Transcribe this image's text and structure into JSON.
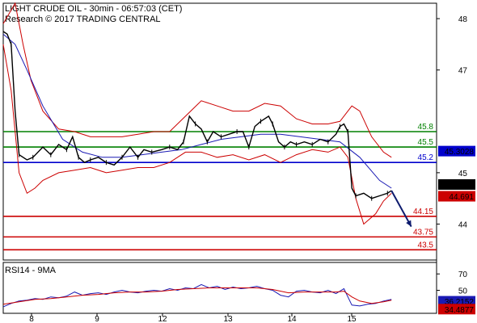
{
  "header": {
    "title": "LIGHT CRUDE OIL - 30min - 06:57:03 (CET)",
    "subtitle": "Research © 2017 TRADING CENTRAL"
  },
  "colors": {
    "price": "#000000",
    "ma_blue": "#1a1ab4",
    "bollinger": "#cc0000",
    "support": "#008000",
    "resistance_blue": "#0000cc",
    "target_red": "#cc0000",
    "arrow": "#0d1b6e",
    "rsi": "#1a1ab4",
    "rsi_ma": "#cc0000"
  },
  "chart_data": [
    {
      "type": "line",
      "name": "price-panel",
      "ylim": [
        43.3,
        48.3
      ],
      "y_ticks": [
        44,
        45,
        47,
        48
      ],
      "x_ticks": [
        "8",
        "9",
        "12",
        "13",
        "14",
        "15"
      ],
      "price_path": [
        [
          0,
          47.75
        ],
        [
          2,
          47.7
        ],
        [
          4,
          47.5
        ],
        [
          6,
          46.2
        ],
        [
          8,
          45.35
        ],
        [
          12,
          45.25
        ],
        [
          15,
          45.3
        ],
        [
          20,
          45.5
        ],
        [
          24,
          45.35
        ],
        [
          28,
          45.55
        ],
        [
          32,
          45.45
        ],
        [
          35,
          45.7
        ],
        [
          38,
          45.3
        ],
        [
          41,
          45.2
        ],
        [
          44,
          45.25
        ],
        [
          48,
          45.3
        ],
        [
          52,
          45.2
        ],
        [
          56,
          45.15
        ],
        [
          60,
          45.3
        ],
        [
          64,
          45.5
        ],
        [
          68,
          45.3
        ],
        [
          71,
          45.45
        ],
        [
          75,
          45.4
        ],
        [
          80,
          45.45
        ],
        [
          84,
          45.5
        ],
        [
          88,
          45.45
        ],
        [
          91,
          45.6
        ],
        [
          94,
          46.1
        ],
        [
          97,
          45.95
        ],
        [
          100,
          45.85
        ],
        [
          103,
          45.6
        ],
        [
          106,
          45.8
        ],
        [
          110,
          45.7
        ],
        [
          114,
          45.75
        ],
        [
          118,
          45.8
        ],
        [
          121,
          45.8
        ],
        [
          124,
          45.5
        ],
        [
          127,
          45.9
        ],
        [
          130,
          46.0
        ],
        [
          134,
          46.1
        ],
        [
          136,
          45.95
        ],
        [
          139,
          45.6
        ],
        [
          142,
          45.5
        ],
        [
          145,
          45.6
        ],
        [
          148,
          45.55
        ],
        [
          152,
          45.6
        ],
        [
          156,
          45.55
        ],
        [
          160,
          45.65
        ],
        [
          164,
          45.6
        ],
        [
          168,
          45.75
        ],
        [
          170,
          45.9
        ],
        [
          172,
          45.95
        ],
        [
          174,
          45.8
        ],
        [
          176,
          44.7
        ],
        [
          178,
          44.55
        ],
        [
          182,
          44.6
        ],
        [
          186,
          44.5
        ],
        [
          190,
          44.55
        ],
        [
          194,
          44.6
        ],
        [
          196,
          44.65
        ]
      ],
      "ma_path": [
        [
          0,
          47.7
        ],
        [
          6,
          47.5
        ],
        [
          12,
          47.0
        ],
        [
          20,
          46.3
        ],
        [
          30,
          45.65
        ],
        [
          40,
          45.4
        ],
        [
          50,
          45.3
        ],
        [
          60,
          45.3
        ],
        [
          70,
          45.35
        ],
        [
          80,
          45.4
        ],
        [
          90,
          45.45
        ],
        [
          100,
          45.55
        ],
        [
          110,
          45.65
        ],
        [
          120,
          45.7
        ],
        [
          130,
          45.75
        ],
        [
          140,
          45.75
        ],
        [
          150,
          45.7
        ],
        [
          160,
          45.65
        ],
        [
          170,
          45.6
        ],
        [
          180,
          45.3
        ],
        [
          190,
          44.85
        ],
        [
          196,
          44.7
        ]
      ],
      "bb_upper": [
        [
          0,
          47.9
        ],
        [
          6,
          48.3
        ],
        [
          10,
          47.5
        ],
        [
          14,
          46.8
        ],
        [
          20,
          46.2
        ],
        [
          28,
          45.85
        ],
        [
          36,
          45.8
        ],
        [
          44,
          45.7
        ],
        [
          52,
          45.7
        ],
        [
          60,
          45.7
        ],
        [
          68,
          45.75
        ],
        [
          76,
          45.8
        ],
        [
          84,
          45.8
        ],
        [
          92,
          46.1
        ],
        [
          100,
          46.4
        ],
        [
          108,
          46.3
        ],
        [
          116,
          46.2
        ],
        [
          124,
          46.2
        ],
        [
          132,
          46.35
        ],
        [
          140,
          46.3
        ],
        [
          148,
          46.05
        ],
        [
          156,
          45.95
        ],
        [
          164,
          45.95
        ],
        [
          170,
          46.0
        ],
        [
          176,
          46.3
        ],
        [
          180,
          46.2
        ],
        [
          186,
          45.7
        ],
        [
          192,
          45.4
        ],
        [
          196,
          45.3
        ]
      ],
      "bb_lower": [
        [
          0,
          47.5
        ],
        [
          4,
          46.6
        ],
        [
          8,
          45.0
        ],
        [
          12,
          44.6
        ],
        [
          16,
          44.7
        ],
        [
          20,
          44.85
        ],
        [
          28,
          45.0
        ],
        [
          36,
          45.05
        ],
        [
          44,
          45.1
        ],
        [
          52,
          45.0
        ],
        [
          60,
          45.05
        ],
        [
          68,
          45.1
        ],
        [
          76,
          45.1
        ],
        [
          84,
          45.2
        ],
        [
          92,
          45.4
        ],
        [
          100,
          45.4
        ],
        [
          108,
          45.3
        ],
        [
          116,
          45.35
        ],
        [
          124,
          45.25
        ],
        [
          132,
          45.35
        ],
        [
          140,
          45.2
        ],
        [
          148,
          45.35
        ],
        [
          156,
          45.45
        ],
        [
          164,
          45.4
        ],
        [
          170,
          45.5
        ],
        [
          174,
          45.3
        ],
        [
          178,
          44.5
        ],
        [
          182,
          44.0
        ],
        [
          188,
          44.2
        ],
        [
          192,
          44.45
        ],
        [
          196,
          44.6
        ]
      ],
      "forecast_arrow": {
        "from": [
          196,
          44.65
        ],
        "to": [
          206,
          43.95
        ]
      },
      "levels": [
        {
          "value": 45.8,
          "label": "45.8",
          "kind": "support"
        },
        {
          "value": 45.5,
          "label": "45.5",
          "kind": "support"
        },
        {
          "value": 45.2,
          "label": "45.2",
          "kind": "pivot"
        },
        {
          "value": 44.15,
          "label": "44.15",
          "kind": "target"
        },
        {
          "value": 43.75,
          "label": "43.75",
          "kind": "target"
        },
        {
          "value": 43.5,
          "label": "43.5",
          "kind": "target"
        }
      ],
      "tags": [
        {
          "value": 45.3028,
          "label": "45.3028",
          "color": "#0000cc"
        },
        {
          "value": 44.7,
          "label": "44.7",
          "color": "#000000"
        },
        {
          "value": 44.691,
          "label": "44.691",
          "color": "#cc0000"
        }
      ]
    },
    {
      "type": "line",
      "name": "rsi-panel",
      "label": "RSI14 - 9MA",
      "ylim": [
        22,
        84
      ],
      "y_ticks": [
        50,
        70
      ],
      "rsi_path": [
        [
          0,
          30
        ],
        [
          4,
          34
        ],
        [
          8,
          37
        ],
        [
          12,
          38
        ],
        [
          16,
          40
        ],
        [
          20,
          39
        ],
        [
          24,
          42
        ],
        [
          28,
          41
        ],
        [
          32,
          43
        ],
        [
          36,
          48
        ],
        [
          40,
          44
        ],
        [
          44,
          46
        ],
        [
          48,
          47
        ],
        [
          52,
          45
        ],
        [
          56,
          48
        ],
        [
          60,
          50
        ],
        [
          64,
          48
        ],
        [
          68,
          47
        ],
        [
          72,
          49
        ],
        [
          76,
          50
        ],
        [
          80,
          49
        ],
        [
          84,
          52
        ],
        [
          88,
          50
        ],
        [
          92,
          53
        ],
        [
          96,
          52
        ],
        [
          100,
          57
        ],
        [
          104,
          53
        ],
        [
          108,
          55
        ],
        [
          112,
          51
        ],
        [
          116,
          54
        ],
        [
          120,
          52
        ],
        [
          124,
          53
        ],
        [
          128,
          55
        ],
        [
          132,
          52
        ],
        [
          136,
          50
        ],
        [
          140,
          44
        ],
        [
          144,
          42
        ],
        [
          148,
          49
        ],
        [
          152,
          50
        ],
        [
          156,
          48
        ],
        [
          160,
          47
        ],
        [
          164,
          50
        ],
        [
          168,
          46
        ],
        [
          172,
          52
        ],
        [
          176,
          32
        ],
        [
          180,
          31
        ],
        [
          184,
          33
        ],
        [
          188,
          34
        ],
        [
          192,
          37
        ],
        [
          196,
          39
        ]
      ],
      "rsi_ma_path": [
        [
          0,
          33
        ],
        [
          8,
          36
        ],
        [
          16,
          39
        ],
        [
          24,
          40
        ],
        [
          32,
          42
        ],
        [
          40,
          44
        ],
        [
          48,
          45
        ],
        [
          56,
          47
        ],
        [
          64,
          48
        ],
        [
          72,
          48
        ],
        [
          80,
          49
        ],
        [
          88,
          51
        ],
        [
          96,
          52
        ],
        [
          104,
          53
        ],
        [
          112,
          53
        ],
        [
          120,
          53
        ],
        [
          128,
          53
        ],
        [
          136,
          51
        ],
        [
          144,
          47
        ],
        [
          152,
          48
        ],
        [
          160,
          48
        ],
        [
          168,
          48
        ],
        [
          172,
          49
        ],
        [
          176,
          42
        ],
        [
          180,
          37
        ],
        [
          186,
          34
        ],
        [
          192,
          36
        ],
        [
          196,
          38
        ]
      ],
      "tags": [
        {
          "value": 36.2152,
          "label": "36.2152",
          "color": "#1a1ab4"
        },
        {
          "value": 34.4877,
          "label": "34.4877",
          "color": "#cc0000"
        }
      ]
    }
  ]
}
